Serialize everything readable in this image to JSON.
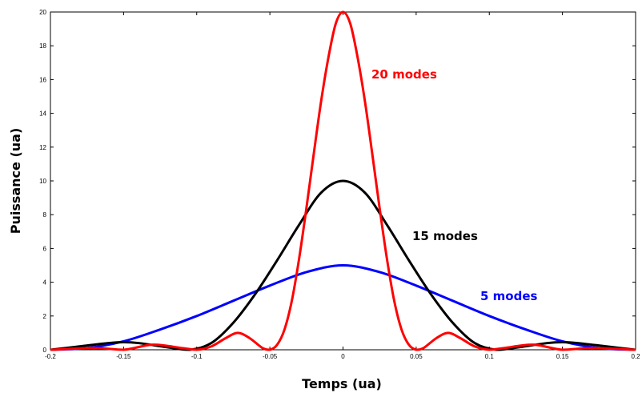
{
  "chart_data": {
    "type": "line",
    "title": "",
    "xlabel": "Temps (ua)",
    "ylabel": "Puissance (ua)",
    "xlim": [
      -0.2,
      0.2
    ],
    "ylim": [
      0,
      20
    ],
    "x_ticks": [
      "-0.2",
      "-0.15",
      "-0.1",
      "-0.05",
      "0",
      "0.05",
      "0.1",
      "0.15",
      "0.2"
    ],
    "y_ticks": [
      "0",
      "2",
      "4",
      "6",
      "8",
      "10",
      "12",
      "14",
      "16",
      "18",
      "20"
    ],
    "grid": false,
    "series": [
      {
        "name": "5 modes",
        "color": "#0000ff",
        "x": [
          -0.2,
          -0.175,
          -0.15,
          -0.125,
          -0.1,
          -0.075,
          -0.05,
          -0.025,
          0,
          0.025,
          0.05,
          0.075,
          0.1,
          0.125,
          0.15,
          0.175,
          0.2
        ],
        "y": [
          0,
          0.1,
          0.5,
          1.2,
          2.0,
          2.9,
          3.8,
          4.6,
          5.0,
          4.6,
          3.8,
          2.9,
          2.0,
          1.2,
          0.5,
          0.1,
          0
        ]
      },
      {
        "name": "15 modes",
        "color": "#000000",
        "x": [
          -0.2,
          -0.18,
          -0.16,
          -0.15,
          -0.14,
          -0.12,
          -0.105,
          -0.09,
          -0.075,
          -0.06,
          -0.045,
          -0.03,
          -0.015,
          0,
          0.015,
          0.03,
          0.045,
          0.06,
          0.075,
          0.09,
          0.105,
          0.12,
          0.14,
          0.15,
          0.16,
          0.18,
          0.2
        ],
        "y": [
          0,
          0.2,
          0.4,
          0.45,
          0.4,
          0.15,
          0,
          0.4,
          1.6,
          3.3,
          5.3,
          7.4,
          9.3,
          10.0,
          9.3,
          7.4,
          5.3,
          3.3,
          1.6,
          0.4,
          0,
          0.15,
          0.4,
          0.45,
          0.4,
          0.2,
          0
        ]
      },
      {
        "name": "20 modes",
        "color": "#ff0000",
        "x": [
          -0.2,
          -0.17,
          -0.15,
          -0.13,
          -0.11,
          -0.1,
          -0.09,
          -0.08,
          -0.072,
          -0.064,
          -0.055,
          -0.05,
          -0.045,
          -0.04,
          -0.035,
          -0.03,
          -0.025,
          -0.02,
          -0.015,
          -0.01,
          -0.005,
          0,
          0.005,
          0.01,
          0.015,
          0.02,
          0.025,
          0.03,
          0.035,
          0.04,
          0.045,
          0.05,
          0.055,
          0.064,
          0.072,
          0.08,
          0.09,
          0.1,
          0.11,
          0.13,
          0.15,
          0.17,
          0.2
        ],
        "y": [
          0,
          0.1,
          0,
          0.3,
          0.1,
          0,
          0.2,
          0.7,
          1.0,
          0.7,
          0.1,
          0,
          0.3,
          1.2,
          2.9,
          5.4,
          8.4,
          11.6,
          14.7,
          17.3,
          19.3,
          20.0,
          19.3,
          17.3,
          14.7,
          11.6,
          8.4,
          5.4,
          2.9,
          1.2,
          0.3,
          0,
          0.1,
          0.7,
          1.0,
          0.7,
          0.2,
          0,
          0.1,
          0.3,
          0,
          0.1,
          0
        ]
      }
    ]
  }
}
